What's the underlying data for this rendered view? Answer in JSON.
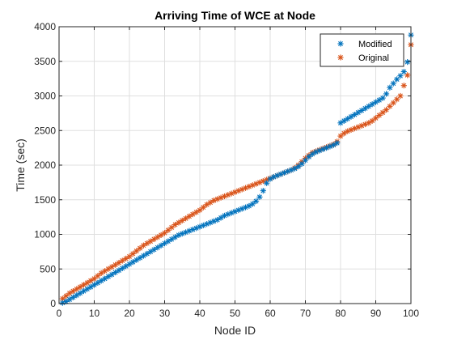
{
  "chart_data": {
    "type": "scatter",
    "title": "Arriving Time of WCE at Node",
    "xlabel": "Node ID",
    "ylabel": "Time (sec)",
    "xlim": [
      0,
      100
    ],
    "ylim": [
      0,
      4000
    ],
    "xticks": [
      0,
      10,
      20,
      30,
      40,
      50,
      60,
      70,
      80,
      90,
      100
    ],
    "yticks": [
      0,
      500,
      1000,
      1500,
      2000,
      2500,
      3000,
      3500,
      4000
    ],
    "grid": true,
    "legend_position": "top-right",
    "marker": "asterisk",
    "series": [
      {
        "name": "Modified",
        "color": "#0072BD",
        "x": [
          1,
          2,
          3,
          4,
          5,
          6,
          7,
          8,
          9,
          10,
          11,
          12,
          13,
          14,
          15,
          16,
          17,
          18,
          19,
          20,
          21,
          22,
          23,
          24,
          25,
          26,
          27,
          28,
          29,
          30,
          31,
          32,
          33,
          34,
          35,
          36,
          37,
          38,
          39,
          40,
          41,
          42,
          43,
          44,
          45,
          46,
          47,
          48,
          49,
          50,
          51,
          52,
          53,
          54,
          55,
          56,
          57,
          58,
          59,
          60,
          61,
          62,
          63,
          64,
          65,
          66,
          67,
          68,
          69,
          70,
          71,
          72,
          73,
          74,
          75,
          76,
          77,
          78,
          79,
          80,
          81,
          82,
          83,
          84,
          85,
          86,
          87,
          88,
          89,
          90,
          91,
          92,
          93,
          94,
          95,
          96,
          97,
          98,
          99,
          100
        ],
        "y": [
          10,
          30,
          60,
          90,
          120,
          150,
          180,
          210,
          240,
          270,
          300,
          330,
          360,
          390,
          420,
          450,
          480,
          510,
          540,
          570,
          600,
          630,
          660,
          690,
          720,
          750,
          780,
          810,
          840,
          870,
          900,
          930,
          960,
          990,
          1010,
          1030,
          1050,
          1070,
          1090,
          1110,
          1130,
          1150,
          1170,
          1190,
          1210,
          1240,
          1270,
          1290,
          1310,
          1330,
          1350,
          1370,
          1390,
          1410,
          1440,
          1480,
          1540,
          1630,
          1740,
          1800,
          1830,
          1850,
          1870,
          1890,
          1910,
          1930,
          1950,
          1980,
          2020,
          2070,
          2120,
          2160,
          2190,
          2210,
          2230,
          2250,
          2270,
          2290,
          2320,
          2610,
          2640,
          2670,
          2700,
          2730,
          2760,
          2790,
          2820,
          2850,
          2880,
          2910,
          2940,
          2970,
          3030,
          3120,
          3180,
          3240,
          3290,
          3350,
          3490,
          3880
        ]
      },
      {
        "name": "Original",
        "color": "#D95319",
        "x": [
          1,
          2,
          3,
          4,
          5,
          6,
          7,
          8,
          9,
          10,
          11,
          12,
          13,
          14,
          15,
          16,
          17,
          18,
          19,
          20,
          21,
          22,
          23,
          24,
          25,
          26,
          27,
          28,
          29,
          30,
          31,
          32,
          33,
          34,
          35,
          36,
          37,
          38,
          39,
          40,
          41,
          42,
          43,
          44,
          45,
          46,
          47,
          48,
          49,
          50,
          51,
          52,
          53,
          54,
          55,
          56,
          57,
          58,
          59,
          60,
          61,
          62,
          63,
          64,
          65,
          66,
          67,
          68,
          69,
          70,
          71,
          72,
          73,
          74,
          75,
          76,
          77,
          78,
          79,
          80,
          81,
          82,
          83,
          84,
          85,
          86,
          87,
          88,
          89,
          90,
          91,
          92,
          93,
          94,
          95,
          96,
          97,
          98,
          99,
          100
        ],
        "y": [
          70,
          110,
          150,
          180,
          210,
          240,
          270,
          300,
          330,
          360,
          400,
          440,
          470,
          500,
          530,
          560,
          590,
          620,
          650,
          680,
          720,
          760,
          800,
          840,
          870,
          900,
          930,
          960,
          990,
          1020,
          1060,
          1100,
          1140,
          1170,
          1200,
          1230,
          1260,
          1290,
          1320,
          1350,
          1390,
          1430,
          1460,
          1490,
          1510,
          1530,
          1550,
          1570,
          1590,
          1610,
          1630,
          1650,
          1670,
          1690,
          1710,
          1730,
          1750,
          1770,
          1790,
          1810,
          1830,
          1850,
          1870,
          1890,
          1910,
          1930,
          1960,
          2000,
          2050,
          2100,
          2140,
          2180,
          2200,
          2220,
          2240,
          2260,
          2280,
          2300,
          2340,
          2420,
          2460,
          2490,
          2510,
          2530,
          2550,
          2570,
          2590,
          2610,
          2640,
          2680,
          2720,
          2760,
          2800,
          2850,
          2900,
          2950,
          3000,
          3150,
          3300,
          3740
        ]
      }
    ]
  }
}
